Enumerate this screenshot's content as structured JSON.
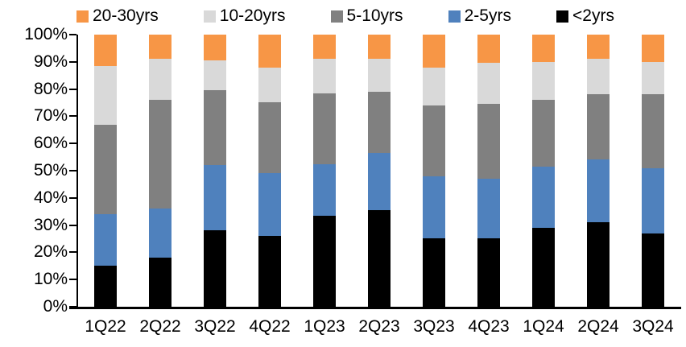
{
  "chart_data": {
    "type": "bar",
    "variant": "stacked-100-percent-column",
    "title": "",
    "xlabel": "",
    "ylabel": "",
    "grid": false,
    "background_color": "#ffffff",
    "axis_color": "#000000",
    "categories": [
      "1Q22",
      "2Q22",
      "3Q22",
      "4Q22",
      "1Q23",
      "2Q23",
      "3Q23",
      "4Q23",
      "1Q24",
      "2Q24",
      "3Q24"
    ],
    "series": [
      {
        "name": "<2yrs",
        "color": "#000000",
        "values": [
          15.0,
          18.0,
          28.0,
          26.0,
          33.5,
          35.5,
          25.0,
          25.0,
          29.0,
          31.0,
          27.0
        ]
      },
      {
        "name": "2-5yrs",
        "color": "#4F81BD",
        "values": [
          19.0,
          18.0,
          24.0,
          23.0,
          19.0,
          21.0,
          23.0,
          22.0,
          22.5,
          23.0,
          24.0
        ]
      },
      {
        "name": "5-10yrs",
        "color": "#808080",
        "values": [
          33.0,
          40.0,
          27.5,
          26.0,
          26.0,
          22.5,
          26.0,
          27.5,
          24.5,
          24.0,
          27.0
        ]
      },
      {
        "name": "10-20yrs",
        "color": "#D9D9D9",
        "values": [
          21.5,
          15.0,
          11.0,
          13.0,
          12.5,
          12.0,
          14.0,
          15.0,
          14.0,
          13.0,
          12.0
        ]
      },
      {
        "name": "20-30yrs",
        "color": "#F79646",
        "values": [
          11.5,
          9.0,
          9.5,
          12.0,
          9.0,
          9.0,
          12.0,
          10.5,
          10.0,
          9.0,
          10.0
        ]
      }
    ],
    "legend": {
      "position": "top",
      "order": [
        "20-30yrs",
        "10-20yrs",
        "5-10yrs",
        "2-5yrs",
        "<2yrs"
      ]
    },
    "y_axis": {
      "min": 0,
      "max": 100,
      "step": 10,
      "tick_labels": [
        "0%",
        "10%",
        "20%",
        "30%",
        "40%",
        "50%",
        "60%",
        "70%",
        "80%",
        "90%",
        "100%"
      ]
    }
  }
}
